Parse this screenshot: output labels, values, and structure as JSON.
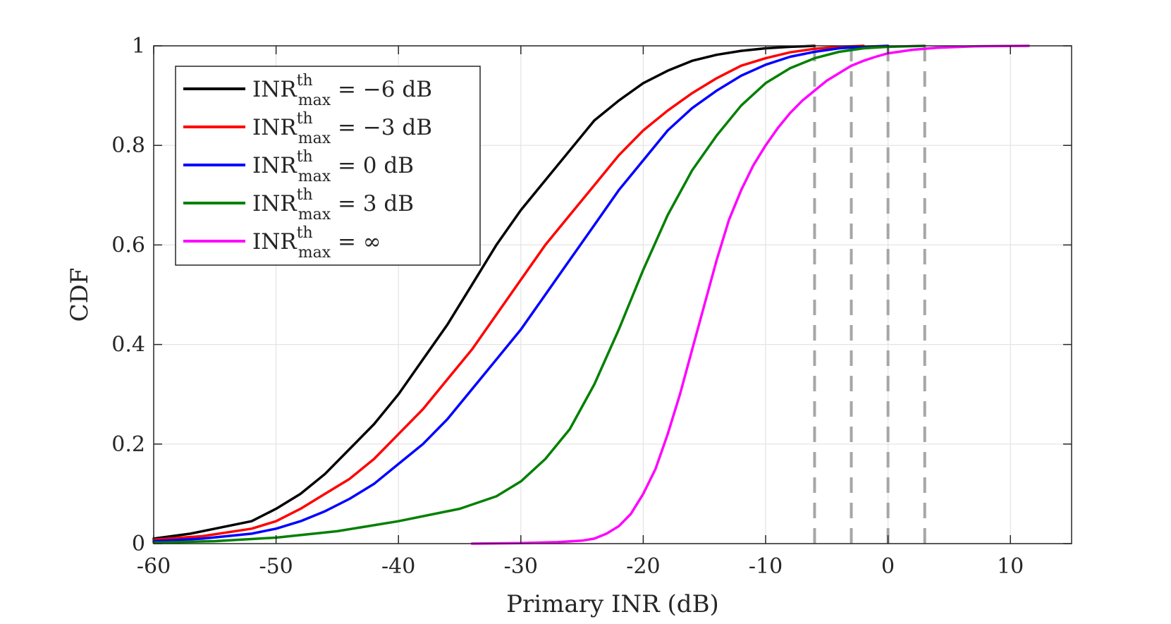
{
  "chart_data": {
    "type": "line",
    "title": "",
    "xlabel": "Primary INR (dB)",
    "ylabel": "CDF",
    "xlim": [
      -60,
      15
    ],
    "ylim": [
      0,
      1
    ],
    "grid": true,
    "legend_location": "top-left",
    "xticks": [
      -60,
      -50,
      -40,
      -30,
      -20,
      -10,
      0,
      10
    ],
    "xtick_labels": [
      "-60",
      "-50",
      "-40",
      "-30",
      "-20",
      "-10",
      "0",
      "10"
    ],
    "yticks": [
      0,
      0.2,
      0.4,
      0.6,
      0.8,
      1
    ],
    "ytick_labels": [
      "0",
      "0.2",
      "0.4",
      "0.6",
      "0.8",
      "1"
    ],
    "threshold_lines": {
      "color": "#a6a6a6",
      "style": "dashed",
      "x": [
        -6,
        -3,
        0,
        3
      ]
    },
    "series": [
      {
        "name": "INR_max^th = -6 dB",
        "label_base": "INR",
        "label_sup": "th",
        "label_sub": "max",
        "label_rest": " = −6 dB",
        "color": "#000000",
        "x": [
          -60,
          -57,
          -55,
          -52,
          -50,
          -48,
          -46,
          -44,
          -42,
          -40,
          -38,
          -36,
          -34,
          -32,
          -30,
          -28,
          -26,
          -24,
          -22,
          -20,
          -18,
          -16,
          -14,
          -12,
          -10,
          -8,
          -6
        ],
        "y": [
          0.01,
          0.02,
          0.03,
          0.045,
          0.07,
          0.1,
          0.14,
          0.19,
          0.24,
          0.3,
          0.37,
          0.44,
          0.52,
          0.6,
          0.67,
          0.73,
          0.79,
          0.85,
          0.89,
          0.925,
          0.95,
          0.97,
          0.982,
          0.99,
          0.995,
          0.998,
          1.0
        ]
      },
      {
        "name": "INR_max^th = -3 dB",
        "label_base": "INR",
        "label_sup": "th",
        "label_sub": "max",
        "label_rest": " = −3 dB",
        "color": "#ff0000",
        "x": [
          -60,
          -56,
          -52,
          -50,
          -48,
          -46,
          -44,
          -42,
          -40,
          -38,
          -36,
          -34,
          -32,
          -30,
          -28,
          -26,
          -24,
          -22,
          -20,
          -18,
          -16,
          -14,
          -12,
          -10,
          -8,
          -6,
          -4,
          -2
        ],
        "y": [
          0.008,
          0.015,
          0.03,
          0.045,
          0.07,
          0.1,
          0.13,
          0.17,
          0.22,
          0.27,
          0.33,
          0.39,
          0.46,
          0.53,
          0.6,
          0.66,
          0.72,
          0.78,
          0.83,
          0.87,
          0.905,
          0.935,
          0.96,
          0.975,
          0.987,
          0.994,
          0.998,
          1.0
        ]
      },
      {
        "name": "INR_max^th = 0 dB",
        "label_base": "INR",
        "label_sup": "th",
        "label_sub": "max",
        "label_rest": " = 0 dB",
        "color": "#0000ff",
        "x": [
          -60,
          -56,
          -52,
          -50,
          -48,
          -46,
          -44,
          -42,
          -40,
          -38,
          -36,
          -34,
          -32,
          -30,
          -28,
          -26,
          -24,
          -22,
          -20,
          -18,
          -16,
          -14,
          -12,
          -10,
          -8,
          -6,
          -4,
          -2,
          0
        ],
        "y": [
          0.005,
          0.01,
          0.02,
          0.03,
          0.045,
          0.065,
          0.09,
          0.12,
          0.16,
          0.2,
          0.25,
          0.31,
          0.37,
          0.43,
          0.5,
          0.57,
          0.64,
          0.71,
          0.77,
          0.83,
          0.875,
          0.91,
          0.94,
          0.962,
          0.978,
          0.988,
          0.995,
          0.998,
          1.0
        ]
      },
      {
        "name": "INR_max^th = 3 dB",
        "label_base": "INR",
        "label_sup": "th",
        "label_sub": "max",
        "label_rest": " = 3 dB",
        "color": "#008000",
        "x": [
          -60,
          -55,
          -50,
          -45,
          -40,
          -35,
          -32,
          -30,
          -28,
          -26,
          -24,
          -22,
          -20,
          -18,
          -16,
          -14,
          -12,
          -10,
          -8,
          -6,
          -4,
          -2,
          0,
          3
        ],
        "y": [
          0.002,
          0.005,
          0.012,
          0.025,
          0.045,
          0.07,
          0.095,
          0.125,
          0.17,
          0.23,
          0.32,
          0.43,
          0.55,
          0.66,
          0.75,
          0.82,
          0.88,
          0.925,
          0.955,
          0.975,
          0.988,
          0.995,
          0.998,
          1.0
        ]
      },
      {
        "name": "INR_max^th = ∞",
        "label_base": "INR",
        "label_sup": "th",
        "label_sub": "max",
        "label_rest": " = ∞",
        "color": "#ff00ff",
        "x": [
          -34,
          -30,
          -27,
          -25,
          -24,
          -23,
          -22,
          -21,
          -20,
          -19,
          -18,
          -17,
          -16,
          -15,
          -14,
          -13,
          -12,
          -11,
          -10,
          -9,
          -8,
          -7,
          -6,
          -5,
          -4,
          -3,
          -2,
          -1,
          0,
          2,
          4,
          7,
          11.5
        ],
        "y": [
          0,
          0.001,
          0.003,
          0.006,
          0.01,
          0.02,
          0.035,
          0.06,
          0.1,
          0.15,
          0.22,
          0.3,
          0.39,
          0.48,
          0.57,
          0.65,
          0.71,
          0.76,
          0.8,
          0.835,
          0.865,
          0.89,
          0.91,
          0.93,
          0.945,
          0.96,
          0.97,
          0.978,
          0.985,
          0.992,
          0.996,
          0.999,
          1.0
        ]
      }
    ]
  }
}
